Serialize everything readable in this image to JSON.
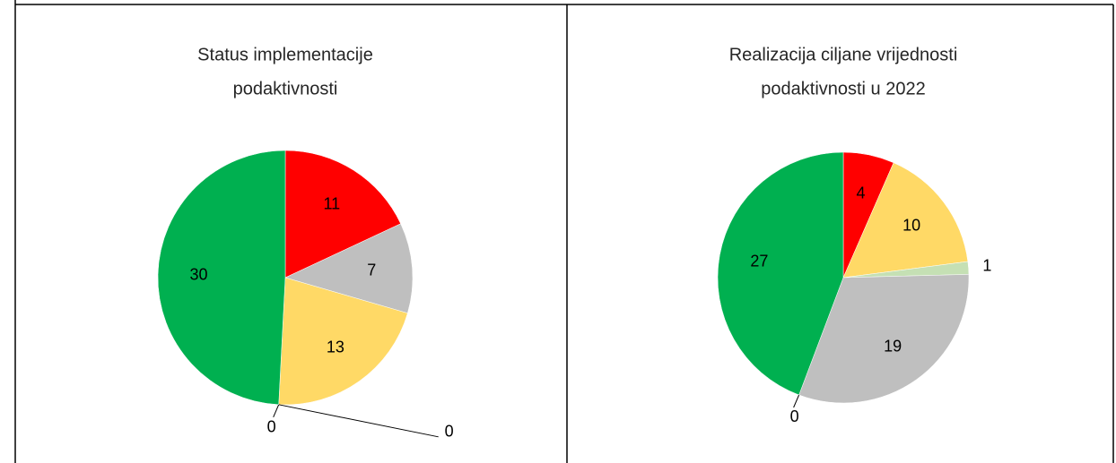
{
  "chart_data": [
    {
      "type": "pie",
      "title": [
        "Status implementacije",
        "podaktivnosti"
      ],
      "values": [
        11,
        7,
        13,
        0,
        0,
        30
      ],
      "colors": [
        "#ff0000",
        "#bfbfbf",
        "#ffd966",
        "#c5e0b4",
        "#4472c4",
        "#00b050"
      ]
    },
    {
      "type": "pie",
      "title": [
        "Realizacija ciljane vrijednosti",
        "podaktivnosti u 2022"
      ],
      "values": [
        4,
        10,
        1,
        19,
        0,
        27
      ],
      "colors": [
        "#ff0000",
        "#ffd966",
        "#c5e0b4",
        "#bfbfbf",
        "#4472c4",
        "#00b050"
      ]
    }
  ]
}
